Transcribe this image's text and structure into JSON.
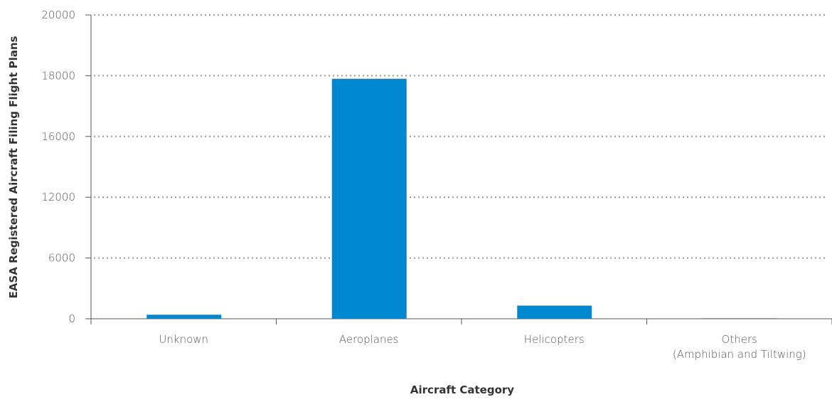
{
  "chart_data": {
    "type": "bar",
    "x_label": "Aircraft Category",
    "y_label": "EASA Registered Aircraft Filing Flight Plans",
    "categories": [
      "Unknown",
      "Aeroplanes",
      "Helicopters",
      "Others\n(Amphibian and Tiltwing)"
    ],
    "values": [
      400,
      17900,
      1300,
      50
    ],
    "color": "#0088d1",
    "ylim": [
      0,
      20000
    ],
    "yticks": [
      0,
      6000,
      12000,
      16000,
      18000,
      20000
    ],
    "grid": true
  }
}
